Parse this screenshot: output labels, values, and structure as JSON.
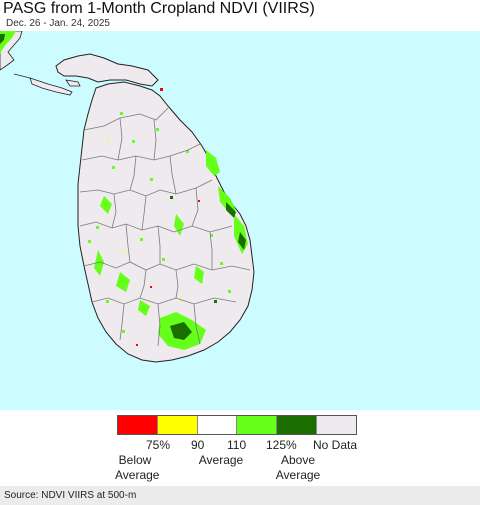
{
  "title": "PASG from 1-Month Cropland NDVI (VIIRS)",
  "date_range": "Dec. 26 - Jan. 24, 2025",
  "legend": {
    "ticks": [
      "75%",
      "90",
      "110",
      "125%",
      "No Data"
    ],
    "descriptors": {
      "below": [
        "Below",
        "Average"
      ],
      "average": "Average",
      "above": [
        "Above",
        "Average"
      ]
    },
    "colors": {
      "below_75": "#ff0000",
      "75_90": "#ffff00",
      "90_110": "#ffffff",
      "110_125": "#66ff1a",
      "above_125": "#1a6e00",
      "no_data": "#eeeaee"
    }
  },
  "map_colors": {
    "sea": "#ccfcff",
    "land": "#eeeaee",
    "border": "#7a7a7a",
    "coast": "#222222"
  },
  "source": "Source: NDVI VIIRS at 500-m"
}
